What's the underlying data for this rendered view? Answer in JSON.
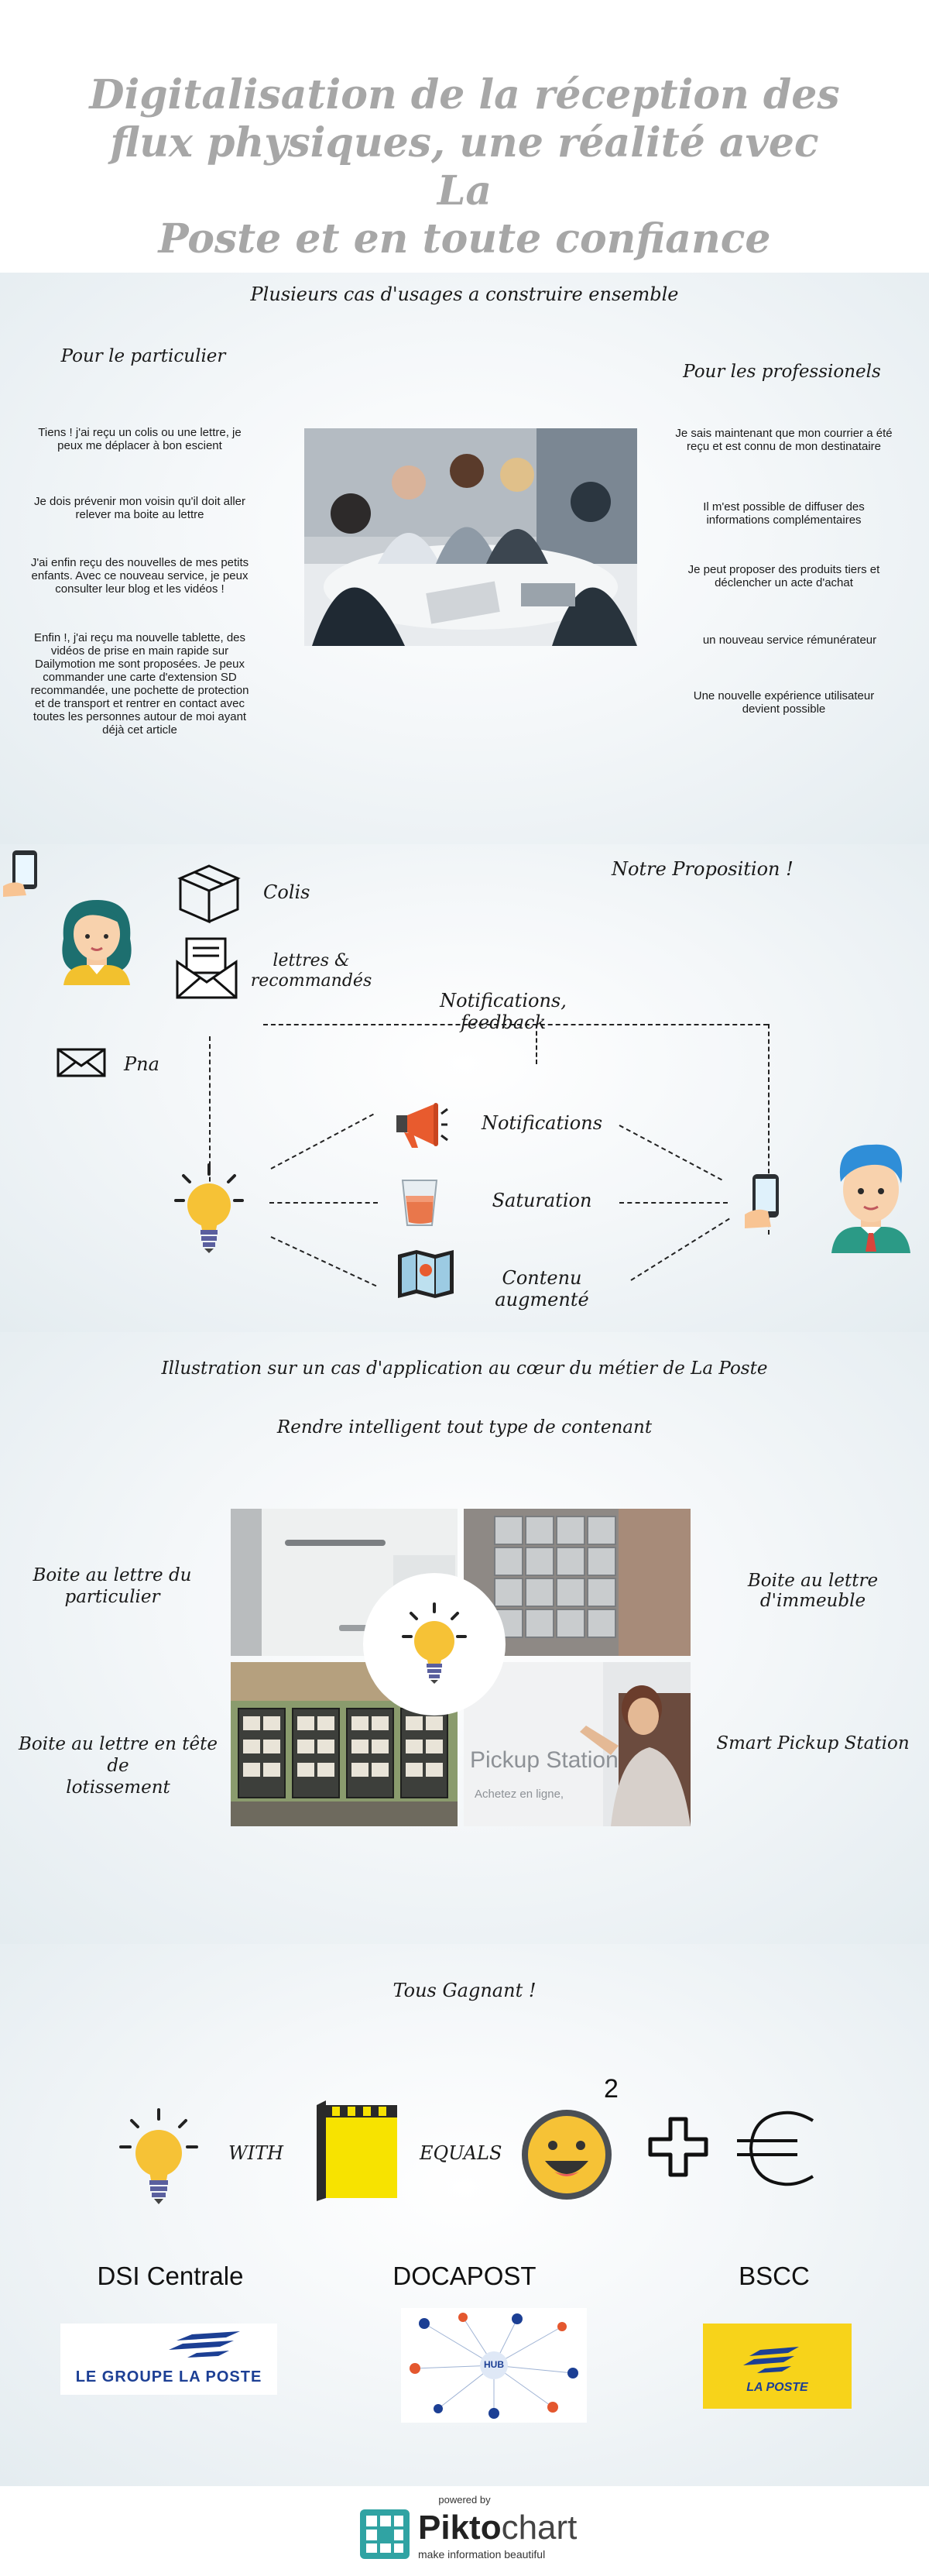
{
  "header": {
    "title_line1": "Digitalisation de la réception des",
    "title_line2": "flux physiques, une réalité avec La",
    "title_line3": "Poste et en toute confiance"
  },
  "usages": {
    "heading": "Plusieurs cas d'usages a construire ensemble",
    "particulier": {
      "title": "Pour le particulier",
      "items": [
        "Tiens ! j'ai reçu un colis ou une lettre, je peux me déplacer à bon escient",
        "Je dois prévenir mon voisin qu'il doit aller relever ma boite au lettre",
        "J'ai enfin reçu des nouvelles de mes petits enfants. Avec ce nouveau service, je peux consulter leur blog et les vidéos !",
        "Enfin !, j'ai reçu ma nouvelle tablette, des vidéos de prise en main rapide sur Dailymotion me sont proposées. Je peux commander une carte d'extension SD recommandée, une pochette de protection et de transport et rentrer en contact avec toutes les personnes autour de moi  ayant déjà cet article"
      ]
    },
    "professionnels": {
      "title": "Pour les professionels",
      "items": [
        "Je sais maintenant que mon courrier a été reçu et est connu de mon destinataire",
        "Il m'est possible de diffuser des informations complémentaires",
        "Je peut proposer des produits tiers et déclencher un acte d'achat",
        "un nouveau service rémunérateur",
        "Une nouvelle expérience utilisateur devient possible"
      ]
    }
  },
  "proposition": {
    "heading": "Notre Proposition !",
    "colis": "Colis",
    "lettres_line1": "lettres &",
    "lettres_line2": "recommandés",
    "pna": "Pna",
    "feedback": "Notifications, feedback",
    "notifications": "Notifications",
    "saturation": "Saturation",
    "contenu_line1": "Contenu",
    "contenu_line2": "augmenté"
  },
  "illustration": {
    "heading": "Illustration sur un cas d'application au cœur du métier de La Poste",
    "subheading": "Rendre intelligent tout type de contenant",
    "label_particulier_line1": "Boite au lettre du",
    "label_particulier_line2": "particulier",
    "label_immeuble": "Boite au lettre d'immeuble",
    "label_lotissement_line1": "Boite au lettre en tête de",
    "label_lotissement_line2": "lotissement",
    "label_smart": "Smart Pickup Station",
    "pickup_sign": "Pickup Station",
    "pickup_sub": "Achetez en ligne,"
  },
  "gagnant": {
    "heading": "Tous Gagnant !",
    "with": "WITH",
    "equals": "EQUALS",
    "exponent": "2",
    "partners": [
      {
        "name": "DSI Centrale",
        "logo_text": "LE GROUPE LA POSTE"
      },
      {
        "name": "DOCAPOST",
        "logo_text": "HUB"
      },
      {
        "name": "BSCC",
        "logo_text": "LA POSTE"
      }
    ]
  },
  "footer": {
    "powered": "powered by",
    "brand_prefix": "Pikto",
    "brand_suffix": "chart",
    "tagline": "make information beautiful"
  },
  "colors": {
    "title_gray": "#a7a7a7",
    "bulb_yellow": "#f6c236",
    "laposte_yellow": "#f7d31a",
    "laposte_blue": "#1c3f94",
    "pikto_teal": "#30a3a3"
  }
}
